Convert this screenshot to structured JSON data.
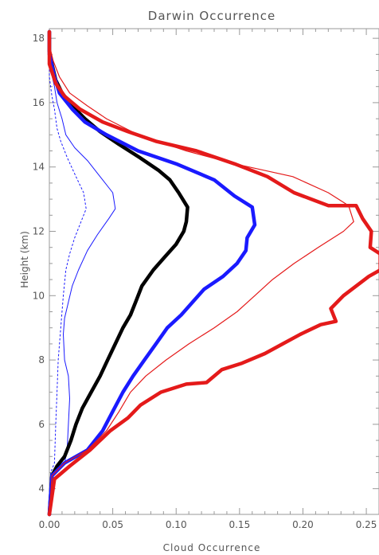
{
  "chart_data": {
    "type": "line",
    "title": "Darwin  Occurrence",
    "xlabel": "Cloud Occurrence",
    "ylabel": "Height (km)",
    "xlim": [
      0.0,
      0.26
    ],
    "ylim": [
      3.2,
      18.3
    ],
    "xticks": [
      0.0,
      0.05,
      0.1,
      0.15,
      0.2,
      0.25
    ],
    "xtick_labels": [
      "0.00",
      "0.05",
      "0.10",
      "0.15",
      "0.20",
      "0.25"
    ],
    "yticks": [
      4,
      6,
      8,
      10,
      12,
      14,
      16,
      18
    ],
    "ytick_labels": [
      "4",
      "6",
      "8",
      "10",
      "12",
      "14",
      "16",
      "18"
    ],
    "grid": false,
    "series": [
      {
        "color": "#1a1aff",
        "width": 1.0,
        "dash": "2,3",
        "points": [
          [
            0.0,
            3.2
          ],
          [
            0.001,
            4.5
          ],
          [
            0.004,
            4.8
          ],
          [
            0.005,
            6
          ],
          [
            0.006,
            7
          ],
          [
            0.007,
            8
          ],
          [
            0.009,
            9
          ],
          [
            0.011,
            10
          ],
          [
            0.013,
            10.8
          ],
          [
            0.016,
            11.3
          ],
          [
            0.02,
            11.8
          ],
          [
            0.025,
            12.3
          ],
          [
            0.029,
            12.7
          ],
          [
            0.027,
            13.2
          ],
          [
            0.021,
            13.7
          ],
          [
            0.014,
            14.3
          ],
          [
            0.009,
            14.8
          ],
          [
            0.006,
            15.2
          ],
          [
            0.004,
            15.8
          ],
          [
            0.002,
            16.2
          ],
          [
            0.0,
            16.8
          ],
          [
            0.0,
            18.2
          ]
        ]
      },
      {
        "color": "#1a1aff",
        "width": 1.0,
        "points": [
          [
            0.0,
            3.2
          ],
          [
            0.003,
            4.5
          ],
          [
            0.012,
            4.8
          ],
          [
            0.014,
            5.2
          ],
          [
            0.015,
            6
          ],
          [
            0.016,
            6.8
          ],
          [
            0.015,
            7.5
          ],
          [
            0.012,
            8
          ],
          [
            0.011,
            8.8
          ],
          [
            0.012,
            9.3
          ],
          [
            0.015,
            9.8
          ],
          [
            0.018,
            10.3
          ],
          [
            0.023,
            10.8
          ],
          [
            0.03,
            11.4
          ],
          [
            0.038,
            11.9
          ],
          [
            0.047,
            12.4
          ],
          [
            0.052,
            12.7
          ],
          [
            0.05,
            13.2
          ],
          [
            0.04,
            13.7
          ],
          [
            0.03,
            14.2
          ],
          [
            0.02,
            14.6
          ],
          [
            0.013,
            15
          ],
          [
            0.01,
            15.5
          ],
          [
            0.006,
            16
          ],
          [
            0.004,
            16.5
          ],
          [
            0.0,
            17.2
          ],
          [
            0.0,
            18.2
          ]
        ]
      },
      {
        "color": "#000000",
        "width": 4.5,
        "points": [
          [
            0.0,
            3.2
          ],
          [
            0.002,
            4.4
          ],
          [
            0.006,
            4.7
          ],
          [
            0.012,
            5
          ],
          [
            0.017,
            5.5
          ],
          [
            0.021,
            6
          ],
          [
            0.026,
            6.5
          ],
          [
            0.033,
            7
          ],
          [
            0.04,
            7.5
          ],
          [
            0.046,
            8
          ],
          [
            0.052,
            8.5
          ],
          [
            0.058,
            9
          ],
          [
            0.064,
            9.4
          ],
          [
            0.068,
            9.8
          ],
          [
            0.073,
            10.3
          ],
          [
            0.082,
            10.8
          ],
          [
            0.091,
            11.2
          ],
          [
            0.1,
            11.6
          ],
          [
            0.106,
            12
          ],
          [
            0.108,
            12.3
          ],
          [
            0.109,
            12.75
          ],
          [
            0.102,
            13.2
          ],
          [
            0.095,
            13.6
          ],
          [
            0.086,
            13.9
          ],
          [
            0.071,
            14.3
          ],
          [
            0.055,
            14.7
          ],
          [
            0.04,
            15.1
          ],
          [
            0.028,
            15.5
          ],
          [
            0.018,
            15.9
          ],
          [
            0.01,
            16.3
          ],
          [
            0.005,
            16.7
          ],
          [
            0.002,
            17.2
          ],
          [
            0.0,
            17.6
          ],
          [
            0.0,
            18.2
          ]
        ]
      },
      {
        "color": "#1a1aff",
        "width": 4.5,
        "points": [
          [
            0.0,
            3.2
          ],
          [
            0.002,
            4.4
          ],
          [
            0.012,
            4.8
          ],
          [
            0.03,
            5.2
          ],
          [
            0.042,
            5.8
          ],
          [
            0.05,
            6.4
          ],
          [
            0.058,
            7
          ],
          [
            0.066,
            7.5
          ],
          [
            0.075,
            8
          ],
          [
            0.084,
            8.5
          ],
          [
            0.093,
            9
          ],
          [
            0.104,
            9.4
          ],
          [
            0.113,
            9.8
          ],
          [
            0.122,
            10.2
          ],
          [
            0.137,
            10.6
          ],
          [
            0.148,
            11
          ],
          [
            0.155,
            11.4
          ],
          [
            0.156,
            11.8
          ],
          [
            0.162,
            12.2
          ],
          [
            0.16,
            12.75
          ],
          [
            0.146,
            13.1
          ],
          [
            0.13,
            13.6
          ],
          [
            0.1,
            14.1
          ],
          [
            0.07,
            14.5
          ],
          [
            0.045,
            15
          ],
          [
            0.028,
            15.4
          ],
          [
            0.018,
            15.8
          ],
          [
            0.008,
            16.3
          ],
          [
            0.004,
            16.8
          ],
          [
            0.0,
            17.5
          ],
          [
            0.0,
            18.2
          ]
        ]
      },
      {
        "color": "#e41a1a",
        "width": 1.2,
        "points": [
          [
            0.0,
            3.2
          ],
          [
            0.002,
            4.4
          ],
          [
            0.012,
            4.8
          ],
          [
            0.03,
            5.2
          ],
          [
            0.045,
            5.8
          ],
          [
            0.055,
            6.4
          ],
          [
            0.064,
            7
          ],
          [
            0.076,
            7.5
          ],
          [
            0.092,
            8
          ],
          [
            0.11,
            8.5
          ],
          [
            0.13,
            9
          ],
          [
            0.148,
            9.5
          ],
          [
            0.162,
            10
          ],
          [
            0.176,
            10.5
          ],
          [
            0.193,
            11
          ],
          [
            0.212,
            11.5
          ],
          [
            0.232,
            12
          ],
          [
            0.24,
            12.3
          ],
          [
            0.236,
            12.8
          ],
          [
            0.22,
            13.2
          ],
          [
            0.192,
            13.7
          ],
          [
            0.146,
            14.1
          ],
          [
            0.108,
            14.5
          ],
          [
            0.07,
            15
          ],
          [
            0.045,
            15.5
          ],
          [
            0.03,
            15.9
          ],
          [
            0.016,
            16.3
          ],
          [
            0.008,
            16.8
          ],
          [
            0.003,
            17.3
          ],
          [
            0.0,
            17.8
          ],
          [
            0.0,
            18.2
          ]
        ]
      },
      {
        "color": "#e41a1a",
        "width": 4.5,
        "points": [
          [
            0.0,
            3.2
          ],
          [
            0.004,
            4.3
          ],
          [
            0.016,
            4.7
          ],
          [
            0.032,
            5.2
          ],
          [
            0.048,
            5.8
          ],
          [
            0.062,
            6.2
          ],
          [
            0.072,
            6.6
          ],
          [
            0.088,
            7
          ],
          [
            0.108,
            7.25
          ],
          [
            0.124,
            7.3
          ],
          [
            0.136,
            7.7
          ],
          [
            0.152,
            7.9
          ],
          [
            0.17,
            8.2
          ],
          [
            0.184,
            8.5
          ],
          [
            0.198,
            8.8
          ],
          [
            0.214,
            9.1
          ],
          [
            0.226,
            9.2
          ],
          [
            0.222,
            9.6
          ],
          [
            0.232,
            10
          ],
          [
            0.252,
            10.6
          ],
          [
            0.261,
            10.8
          ],
          [
            0.261,
            11.3
          ],
          [
            0.253,
            11.5
          ],
          [
            0.254,
            12
          ],
          [
            0.247,
            12.4
          ],
          [
            0.242,
            12.8
          ],
          [
            0.22,
            12.8
          ],
          [
            0.193,
            13.2
          ],
          [
            0.172,
            13.7
          ],
          [
            0.146,
            14.1
          ],
          [
            0.116,
            14.5
          ],
          [
            0.084,
            14.8
          ],
          [
            0.062,
            15.1
          ],
          [
            0.042,
            15.4
          ],
          [
            0.024,
            15.8
          ],
          [
            0.012,
            16.2
          ],
          [
            0.005,
            16.6
          ],
          [
            0.0,
            17.2
          ],
          [
            0.0,
            18.2
          ]
        ]
      }
    ]
  }
}
